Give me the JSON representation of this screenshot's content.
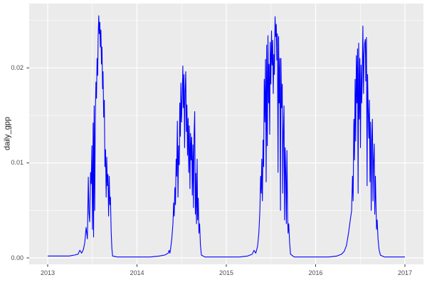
{
  "figure": {
    "background": "#FFFFFF"
  },
  "chart_data": {
    "type": "line",
    "style": "ggplot2",
    "title": "",
    "xlabel": "",
    "ylabel": "daily_gpp",
    "legend": "none",
    "grid": "on",
    "panel_background": "#EBEBEB",
    "grid_major_color": "#FFFFFF",
    "grid_minor_color": "#FFFFFF",
    "tick_mark_color": "#333333",
    "tick_label_color": "#4D4D4D",
    "axis_title_color": "#1A1A1A",
    "line_color": "#0000FF",
    "x_ticks": [
      2013,
      2014,
      2015,
      2016,
      2017
    ],
    "x_tick_labels": [
      "2013",
      "2014",
      "2015",
      "2016",
      "2017"
    ],
    "x_minor_ticks": [
      2013.5,
      2014.5,
      2015.5,
      2016.5
    ],
    "y_ticks": [
      0.0,
      0.01,
      0.02
    ],
    "y_tick_labels": [
      "0.00",
      "0.01",
      "0.02"
    ],
    "y_minor_ticks": [
      0.005,
      0.015,
      0.025
    ],
    "x_range": [
      2012.793,
      2017.207
    ],
    "y_range": [
      -0.00067,
      0.02677
    ],
    "series": [
      {
        "name": "daily_gpp",
        "color": "#0000FF",
        "points": [
          [
            2013.0,
            0.0002
          ],
          [
            2013.08,
            0.0002
          ],
          [
            2013.16,
            0.0002
          ],
          [
            2013.24,
            0.0002
          ],
          [
            2013.3,
            0.0003
          ],
          [
            2013.34,
            0.0004
          ],
          [
            2013.36,
            0.0008
          ],
          [
            2013.38,
            0.0005
          ],
          [
            2013.4,
            0.0009
          ],
          [
            2013.415,
            0.0016
          ],
          [
            2013.43,
            0.0032
          ],
          [
            2013.445,
            0.002
          ],
          [
            2013.455,
            0.0085
          ],
          [
            2013.462,
            0.0048
          ],
          [
            2013.47,
            0.0038
          ],
          [
            2013.48,
            0.009
          ],
          [
            2013.488,
            0.0078
          ],
          [
            2013.495,
            0.0118
          ],
          [
            2013.502,
            0.003
          ],
          [
            2013.508,
            0.0142
          ],
          [
            2013.514,
            0.0022
          ],
          [
            2013.52,
            0.016
          ],
          [
            2013.527,
            0.005
          ],
          [
            2013.533,
            0.0146
          ],
          [
            2013.54,
            0.0185
          ],
          [
            2013.547,
            0.0168
          ],
          [
            2013.553,
            0.021
          ],
          [
            2013.56,
            0.0192
          ],
          [
            2013.565,
            0.0232
          ],
          [
            2013.572,
            0.0255
          ],
          [
            2013.578,
            0.0236
          ],
          [
            2013.584,
            0.0248
          ],
          [
            2013.59,
            0.0222
          ],
          [
            2013.596,
            0.024
          ],
          [
            2013.602,
            0.0204
          ],
          [
            2013.608,
            0.0222
          ],
          [
            2013.614,
            0.0178
          ],
          [
            2013.62,
            0.0196
          ],
          [
            2013.627,
            0.0148
          ],
          [
            2013.634,
            0.0166
          ],
          [
            2013.641,
            0.0096
          ],
          [
            2013.648,
            0.0114
          ],
          [
            2013.655,
            0.0064
          ],
          [
            2013.661,
            0.0106
          ],
          [
            2013.668,
            0.0076
          ],
          [
            2013.675,
            0.0088
          ],
          [
            2013.682,
            0.0044
          ],
          [
            2013.689,
            0.0086
          ],
          [
            2013.696,
            0.0056
          ],
          [
            2013.703,
            0.0064
          ],
          [
            2013.711,
            0.0028
          ],
          [
            2013.719,
            0.001
          ],
          [
            2013.727,
            0.0002
          ],
          [
            2013.78,
            0.0001
          ],
          [
            2013.88,
            0.0001
          ],
          [
            2013.97,
            0.0001
          ],
          [
            2014.05,
            0.0001
          ],
          [
            2014.15,
            0.0001
          ],
          [
            2014.25,
            0.0002
          ],
          [
            2014.31,
            0.0003
          ],
          [
            2014.35,
            0.0005
          ],
          [
            2014.36,
            0.0008
          ],
          [
            2014.368,
            0.0005
          ],
          [
            2014.375,
            0.0009
          ],
          [
            2014.39,
            0.002
          ],
          [
            2014.402,
            0.0036
          ],
          [
            2014.41,
            0.0058
          ],
          [
            2014.417,
            0.0044
          ],
          [
            2014.424,
            0.0074
          ],
          [
            2014.431,
            0.0056
          ],
          [
            2014.438,
            0.0104
          ],
          [
            2014.445,
            0.0086
          ],
          [
            2014.452,
            0.0144
          ],
          [
            2014.459,
            0.0064
          ],
          [
            2014.466,
            0.0118
          ],
          [
            2014.473,
            0.0098
          ],
          [
            2014.479,
            0.0163
          ],
          [
            2014.486,
            0.0128
          ],
          [
            2014.492,
            0.0184
          ],
          [
            2014.499,
            0.0143
          ],
          [
            2014.506,
            0.017
          ],
          [
            2014.513,
            0.0202
          ],
          [
            2014.519,
            0.0158
          ],
          [
            2014.526,
            0.0193
          ],
          [
            2014.533,
            0.0116
          ],
          [
            2014.539,
            0.0174
          ],
          [
            2014.546,
            0.0196
          ],
          [
            2014.553,
            0.0133
          ],
          [
            2014.559,
            0.0161
          ],
          [
            2014.566,
            0.0108
          ],
          [
            2014.573,
            0.0147
          ],
          [
            2014.579,
            0.009
          ],
          [
            2014.586,
            0.0139
          ],
          [
            2014.593,
            0.0073
          ],
          [
            2014.599,
            0.0131
          ],
          [
            2014.606,
            0.0103
          ],
          [
            2014.613,
            0.0127
          ],
          [
            2014.619,
            0.0066
          ],
          [
            2014.626,
            0.0119
          ],
          [
            2014.633,
            0.0053
          ],
          [
            2014.639,
            0.0129
          ],
          [
            2014.646,
            0.0154
          ],
          [
            2014.653,
            0.0046
          ],
          [
            2014.659,
            0.0089
          ],
          [
            2014.666,
            0.0036
          ],
          [
            2014.673,
            0.0104
          ],
          [
            2014.679,
            0.004
          ],
          [
            2014.686,
            0.0063
          ],
          [
            2014.693,
            0.0026
          ],
          [
            2014.701,
            0.0036
          ],
          [
            2014.71,
            0.0014
          ],
          [
            2014.721,
            0.0003
          ],
          [
            2014.76,
            0.0001
          ],
          [
            2014.86,
            0.0001
          ],
          [
            2014.96,
            0.0001
          ],
          [
            2015.05,
            0.0001
          ],
          [
            2015.15,
            0.0001
          ],
          [
            2015.24,
            0.0002
          ],
          [
            2015.29,
            0.0004
          ],
          [
            2015.31,
            0.0008
          ],
          [
            2015.33,
            0.0005
          ],
          [
            2015.35,
            0.0012
          ],
          [
            2015.364,
            0.0026
          ],
          [
            2015.376,
            0.005
          ],
          [
            2015.384,
            0.0086
          ],
          [
            2015.391,
            0.0068
          ],
          [
            2015.397,
            0.0104
          ],
          [
            2015.404,
            0.006
          ],
          [
            2015.411,
            0.0124
          ],
          [
            2015.418,
            0.0096
          ],
          [
            2015.425,
            0.0188
          ],
          [
            2015.432,
            0.0143
          ],
          [
            2015.439,
            0.0209
          ],
          [
            2015.446,
            0.008
          ],
          [
            2015.452,
            0.0224
          ],
          [
            2015.459,
            0.0118
          ],
          [
            2015.466,
            0.0234
          ],
          [
            2015.473,
            0.0163
          ],
          [
            2015.479,
            0.0204
          ],
          [
            2015.486,
            0.013
          ],
          [
            2015.492,
            0.0227
          ],
          [
            2015.499,
            0.0183
          ],
          [
            2015.506,
            0.0239
          ],
          [
            2015.512,
            0.0203
          ],
          [
            2015.519,
            0.0229
          ],
          [
            2015.526,
            0.0173
          ],
          [
            2015.532,
            0.0214
          ],
          [
            2015.539,
            0.0193
          ],
          [
            2015.546,
            0.0254
          ],
          [
            2015.552,
            0.0233
          ],
          [
            2015.559,
            0.0246
          ],
          [
            2015.566,
            0.0208
          ],
          [
            2015.572,
            0.0236
          ],
          [
            2015.579,
            0.009
          ],
          [
            2015.586,
            0.0233
          ],
          [
            2015.592,
            0.0163
          ],
          [
            2015.599,
            0.021
          ],
          [
            2015.606,
            0.005
          ],
          [
            2015.612,
            0.021
          ],
          [
            2015.619,
            0.0158
          ],
          [
            2015.626,
            0.0183
          ],
          [
            2015.632,
            0.0068
          ],
          [
            2015.639,
            0.0133
          ],
          [
            2015.646,
            0.016
          ],
          [
            2015.652,
            0.004
          ],
          [
            2015.659,
            0.0116
          ],
          [
            2015.666,
            0.0086
          ],
          [
            2015.672,
            0.0036
          ],
          [
            2015.679,
            0.0113
          ],
          [
            2015.686,
            0.0043
          ],
          [
            2015.692,
            0.0026
          ],
          [
            2015.699,
            0.0036
          ],
          [
            2015.709,
            0.0016
          ],
          [
            2015.719,
            0.0004
          ],
          [
            2015.76,
            0.0001
          ],
          [
            2015.86,
            0.0001
          ],
          [
            2015.96,
            0.0001
          ],
          [
            2016.05,
            0.0001
          ],
          [
            2016.15,
            0.0001
          ],
          [
            2016.24,
            0.0002
          ],
          [
            2016.29,
            0.0004
          ],
          [
            2016.32,
            0.0007
          ],
          [
            2016.345,
            0.0013
          ],
          [
            2016.368,
            0.0026
          ],
          [
            2016.388,
            0.004
          ],
          [
            2016.403,
            0.005
          ],
          [
            2016.413,
            0.0086
          ],
          [
            2016.42,
            0.006
          ],
          [
            2016.428,
            0.0146
          ],
          [
            2016.435,
            0.0103
          ],
          [
            2016.442,
            0.0188
          ],
          [
            2016.449,
            0.0123
          ],
          [
            2016.456,
            0.0213
          ],
          [
            2016.462,
            0.0163
          ],
          [
            2016.469,
            0.022
          ],
          [
            2016.476,
            0.0068
          ],
          [
            2016.482,
            0.0226
          ],
          [
            2016.489,
            0.0146
          ],
          [
            2016.496,
            0.021
          ],
          [
            2016.502,
            0.0116
          ],
          [
            2016.509,
            0.0203
          ],
          [
            2016.516,
            0.0163
          ],
          [
            2016.522,
            0.019
          ],
          [
            2016.529,
            0.0244
          ],
          [
            2016.536,
            0.0173
          ],
          [
            2016.542,
            0.0213
          ],
          [
            2016.549,
            0.0226
          ],
          [
            2016.556,
            0.023
          ],
          [
            2016.562,
            0.0186
          ],
          [
            2016.569,
            0.0232
          ],
          [
            2016.576,
            0.0076
          ],
          [
            2016.582,
            0.0193
          ],
          [
            2016.589,
            0.0156
          ],
          [
            2016.596,
            0.0126
          ],
          [
            2016.602,
            0.0166
          ],
          [
            2016.609,
            0.008
          ],
          [
            2016.616,
            0.0143
          ],
          [
            2016.622,
            0.005
          ],
          [
            2016.629,
            0.0123
          ],
          [
            2016.636,
            0.0146
          ],
          [
            2016.642,
            0.006
          ],
          [
            2016.649,
            0.0103
          ],
          [
            2016.656,
            0.012
          ],
          [
            2016.662,
            0.0046
          ],
          [
            2016.669,
            0.0086
          ],
          [
            2016.676,
            0.0056
          ],
          [
            2016.682,
            0.003
          ],
          [
            2016.689,
            0.004
          ],
          [
            2016.699,
            0.002
          ],
          [
            2016.71,
            0.0009
          ],
          [
            2016.725,
            0.0003
          ],
          [
            2016.77,
            0.0001
          ],
          [
            2016.87,
            0.0001
          ],
          [
            2016.96,
            0.0001
          ],
          [
            2017.0,
            0.0001
          ]
        ]
      }
    ]
  }
}
